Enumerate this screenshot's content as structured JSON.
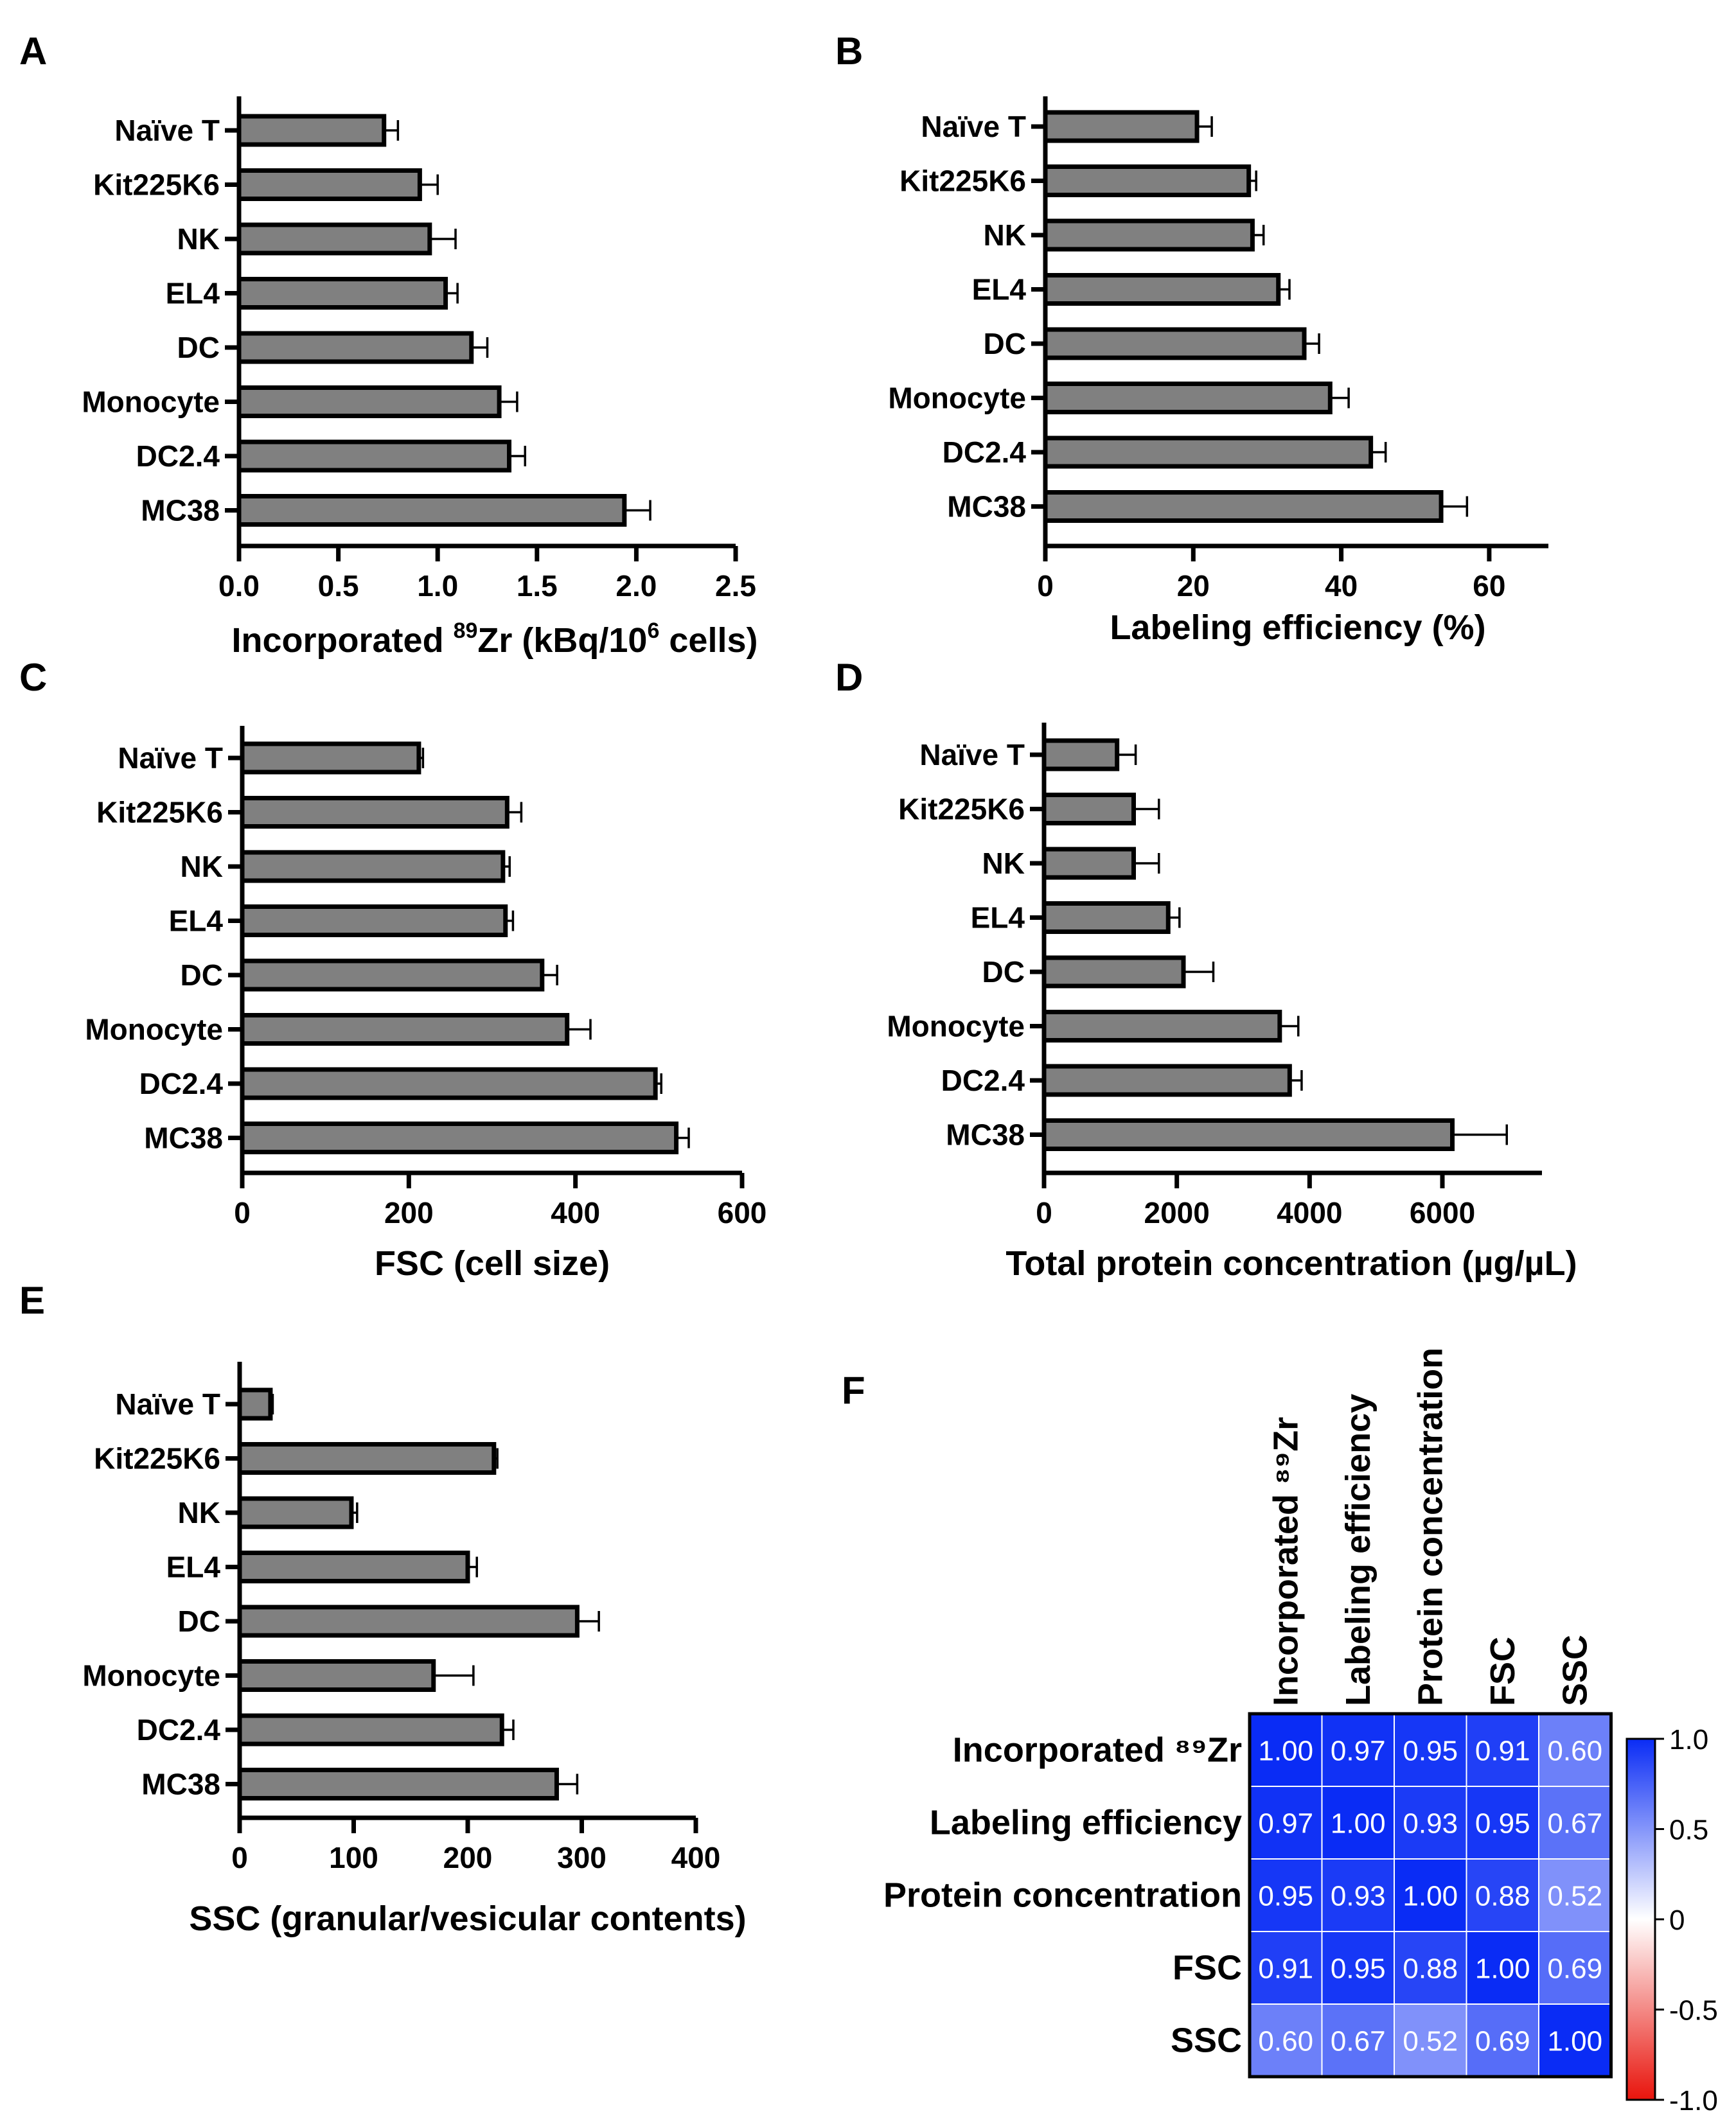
{
  "panels": [
    {
      "id": "A",
      "type": "hbar",
      "categories": [
        "Naïve T",
        "Kit225K6",
        "NK",
        "EL4",
        "DC",
        "Monocyte",
        "DC2.4",
        "MC38"
      ],
      "values": [
        0.73,
        0.91,
        0.96,
        1.04,
        1.17,
        1.31,
        1.36,
        1.94
      ],
      "errors": [
        0.07,
        0.09,
        0.13,
        0.06,
        0.08,
        0.09,
        0.08,
        0.13
      ],
      "xlim": [
        0,
        2.5
      ],
      "xticks": [
        "0.0",
        "0.5",
        "1.0",
        "1.5",
        "2.0",
        "2.5"
      ],
      "xtick_values": [
        0,
        0.5,
        1.0,
        1.5,
        2.0,
        2.5
      ],
      "xlabel_parts": [
        "Incorporated ",
        "89",
        "Zr (kBq/10",
        "6",
        " cells)"
      ]
    },
    {
      "id": "B",
      "type": "hbar",
      "categories": [
        "Naïve T",
        "Kit225K6",
        "NK",
        "EL4",
        "DC",
        "Monocyte",
        "DC2.4",
        "MC38"
      ],
      "values": [
        20.5,
        27.5,
        28.0,
        31.5,
        35.0,
        38.5,
        44.0,
        53.5
      ],
      "errors": [
        2.0,
        1.0,
        1.5,
        1.5,
        2.0,
        2.5,
        2.0,
        3.5
      ],
      "xlim": [
        0,
        68
      ],
      "xticks": [
        "0",
        "20",
        "40",
        "60"
      ],
      "xtick_values": [
        0,
        20,
        40,
        60
      ],
      "xlabel": "Labeling efficiency (%)"
    },
    {
      "id": "C",
      "type": "hbar",
      "categories": [
        "Naïve T",
        "Kit225K6",
        "NK",
        "EL4",
        "DC",
        "Monocyte",
        "DC2.4",
        "MC38"
      ],
      "values": [
        212,
        318,
        313,
        316,
        360,
        390,
        496,
        521
      ],
      "errors": [
        5,
        17,
        8,
        9,
        18,
        28,
        7,
        15
      ],
      "xlim": [
        0,
        600
      ],
      "xticks": [
        "0",
        "200",
        "400",
        "600"
      ],
      "xtick_values": [
        0,
        200,
        400,
        600
      ],
      "xlabel": "FSC (cell size)"
    },
    {
      "id": "D",
      "type": "hbar",
      "categories": [
        "Naïve T",
        "Kit225K6",
        "NK",
        "EL4",
        "DC",
        "Monocyte",
        "DC2.4",
        "MC38"
      ],
      "values": [
        1100,
        1350,
        1350,
        1870,
        2100,
        3550,
        3700,
        6150
      ],
      "errors": [
        280,
        380,
        380,
        170,
        450,
        280,
        180,
        820
      ],
      "xlim": [
        0,
        7500
      ],
      "xticks": [
        "0",
        "2000",
        "4000",
        "6000"
      ],
      "xtick_values": [
        0,
        2000,
        4000,
        6000
      ],
      "xlabel": "Total protein concentration (µg/µL)"
    },
    {
      "id": "E",
      "type": "hbar",
      "categories": [
        "Naïve T",
        "Kit225K6",
        "NK",
        "EL4",
        "DC",
        "Monocyte",
        "DC2.4",
        "MC38"
      ],
      "values": [
        27,
        223,
        98,
        200,
        296,
        170,
        230,
        278
      ],
      "errors": [
        2,
        3,
        5,
        8,
        19,
        35,
        10,
        18
      ],
      "xlim": [
        0,
        400
      ],
      "xticks": [
        "0",
        "100",
        "200",
        "300",
        "400"
      ],
      "xtick_values": [
        0,
        100,
        200,
        300,
        400
      ],
      "xlabel": "SSC (granular/vesicular contents)"
    }
  ],
  "heatmap": {
    "id": "F",
    "type": "heatmap",
    "col_labels": [
      "Incorporated ⁸⁹Zr",
      "Labeling efficiency",
      "Protein concentration",
      "FSC",
      "SSC"
    ],
    "row_labels": [
      "Incorporated ⁸⁹Zr",
      "Labeling efficiency",
      "Protein concentration",
      "FSC",
      "SSC"
    ],
    "matrix": [
      [
        1.0,
        0.97,
        0.95,
        0.91,
        0.6
      ],
      [
        0.97,
        1.0,
        0.93,
        0.95,
        0.67
      ],
      [
        0.95,
        0.93,
        1.0,
        0.88,
        0.52
      ],
      [
        0.91,
        0.95,
        0.88,
        1.0,
        0.69
      ],
      [
        0.6,
        0.67,
        0.52,
        0.69,
        1.0
      ]
    ],
    "cell_labels": [
      [
        "1.00",
        "0.97",
        "0.95",
        "0.91",
        "0.60"
      ],
      [
        "0.97",
        "1.00",
        "0.93",
        "0.95",
        "0.67"
      ],
      [
        "0.95",
        "0.93",
        "1.00",
        "0.88",
        "0.52"
      ],
      [
        "0.91",
        "0.95",
        "0.88",
        "1.00",
        "0.69"
      ],
      [
        "0.60",
        "0.67",
        "0.52",
        "0.69",
        "1.00"
      ]
    ],
    "colorbar_ticks": [
      "1.0",
      "0.5",
      "0",
      "-0.5",
      "-1.0"
    ],
    "colorbar_values": [
      1.0,
      0.5,
      0,
      -0.5,
      -1.0
    ],
    "range": [
      -1.0,
      1.0
    ]
  },
  "colors": {
    "bar_fill": "#808080",
    "stroke": "#000000",
    "positive": "#0a2cf5",
    "negative": "#e8140c",
    "neutral": "#ffffff"
  }
}
